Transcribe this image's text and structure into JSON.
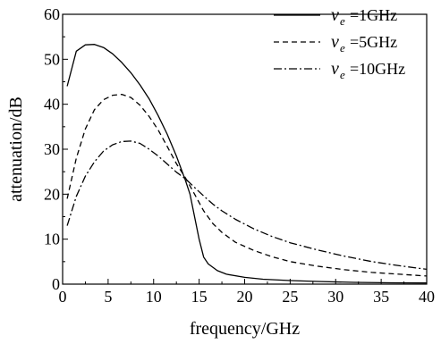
{
  "chart_data": {
    "type": "line",
    "xlabel": "frequency/GHz",
    "ylabel": "attenuation/dB",
    "xlim": [
      0,
      40
    ],
    "ylim": [
      0,
      60
    ],
    "xticks": [
      0,
      5,
      10,
      15,
      20,
      25,
      30,
      35,
      40
    ],
    "yticks": [
      0,
      10,
      20,
      30,
      40,
      50,
      60
    ],
    "grid": false,
    "legend_position": "top-right",
    "series": [
      {
        "name": "v_e =1GHz",
        "symbol": "v",
        "subscript": "e",
        "value_text": "=1GHz",
        "line_style": "solid",
        "x": [
          0.5,
          1.5,
          2.5,
          3.5,
          4.5,
          5.5,
          6.5,
          7.5,
          8.5,
          9.5,
          10.5,
          11.5,
          12.5,
          13.5,
          14.0,
          14.5,
          15.0,
          15.5,
          16.0,
          17.0,
          18.0,
          20.0,
          22.0,
          25.0,
          28.0,
          32.0,
          36.0,
          40.0
        ],
        "y": [
          44,
          51.8,
          53.2,
          53.3,
          52.6,
          51.2,
          49.3,
          47.0,
          44.3,
          41.2,
          37.5,
          33.3,
          28.5,
          23.0,
          20.0,
          15.0,
          10.0,
          6.0,
          4.5,
          3.0,
          2.2,
          1.5,
          1.1,
          0.8,
          0.6,
          0.4,
          0.3,
          0.25
        ]
      },
      {
        "name": "v_e =5GHz",
        "symbol": "v",
        "subscript": "e",
        "value_text": "=5GHz",
        "line_style": "dashed",
        "x": [
          0.5,
          1.5,
          2.5,
          3.5,
          4.5,
          5.5,
          6.5,
          7.5,
          8.5,
          9.5,
          10.5,
          11.5,
          12.5,
          13.5,
          14.5,
          15.5,
          16.5,
          17.5,
          19.0,
          21.0,
          23.0,
          25.0,
          28.0,
          31.0,
          34.0,
          37.0,
          40.0
        ],
        "y": [
          19,
          28,
          34.5,
          38.8,
          41.0,
          42.0,
          42.2,
          41.5,
          39.8,
          37.3,
          34.3,
          30.6,
          26.8,
          23.6,
          20.0,
          16.3,
          13.5,
          11.5,
          9.3,
          7.5,
          6.1,
          5.0,
          4.0,
          3.2,
          2.6,
          2.2,
          1.8
        ]
      },
      {
        "name": "v_e =10GHz",
        "symbol": "v",
        "subscript": "e",
        "value_text": "=10GHz",
        "line_style": "dashdot",
        "x": [
          0.5,
          1.5,
          2.5,
          3.5,
          4.5,
          5.5,
          6.5,
          7.5,
          8.5,
          9.5,
          10.5,
          11.5,
          12.5,
          13.5,
          14.5,
          15.5,
          16.5,
          17.5,
          19.0,
          21.0,
          23.0,
          25.0,
          28.0,
          31.0,
          34.0,
          37.0,
          40.0
        ],
        "y": [
          13,
          19.5,
          24.0,
          27.2,
          29.6,
          31.0,
          31.7,
          31.8,
          31.3,
          30.0,
          28.5,
          26.7,
          24.9,
          23.4,
          21.5,
          19.6,
          17.8,
          16.3,
          14.4,
          12.3,
          10.6,
          9.2,
          7.6,
          6.2,
          5.0,
          4.1,
          3.3
        ]
      }
    ]
  }
}
